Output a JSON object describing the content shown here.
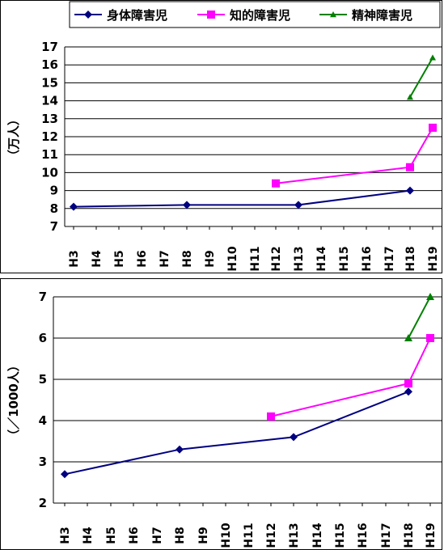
{
  "chart_data": [
    {
      "type": "line",
      "ylabel": "（万人）",
      "ylim": [
        7,
        17
      ],
      "yticks": [
        7,
        8,
        9,
        10,
        11,
        12,
        13,
        14,
        15,
        16,
        17
      ],
      "categories": [
        "H3",
        "H4",
        "H5",
        "H6",
        "H7",
        "H8",
        "H9",
        "H10",
        "H11",
        "H12",
        "H13",
        "H14",
        "H15",
        "H16",
        "H17",
        "H18",
        "H19"
      ],
      "grid": true,
      "legend": "top",
      "series": [
        {
          "name": "身体障害児",
          "color": "#000080",
          "marker": "diamond",
          "points": [
            {
              "x": "H3",
              "y": 8.1
            },
            {
              "x": "H8",
              "y": 8.2
            },
            {
              "x": "H13",
              "y": 8.2
            },
            {
              "x": "H18",
              "y": 9.0
            }
          ]
        },
        {
          "name": "知的障害児",
          "color": "#ff00ff",
          "marker": "square",
          "points": [
            {
              "x": "H12",
              "y": 9.4
            },
            {
              "x": "H18",
              "y": 10.3
            },
            {
              "x": "H19",
              "y": 12.5
            }
          ]
        },
        {
          "name": "精神障害児",
          "color": "#008000",
          "marker": "triangle",
          "points": [
            {
              "x": "H18",
              "y": 14.2
            },
            {
              "x": "H19",
              "y": 16.4
            }
          ]
        }
      ]
    },
    {
      "type": "line",
      "ylabel": "（／1000人）",
      "ylim": [
        2,
        7
      ],
      "yticks": [
        2,
        3,
        4,
        5,
        6,
        7
      ],
      "categories": [
        "H3",
        "H4",
        "H5",
        "H6",
        "H7",
        "H8",
        "H9",
        "H10",
        "H11",
        "H12",
        "H13",
        "H14",
        "H15",
        "H16",
        "H17",
        "H18",
        "H19"
      ],
      "grid": true,
      "series": [
        {
          "name": "身体障害児",
          "color": "#000080",
          "marker": "diamond",
          "points": [
            {
              "x": "H3",
              "y": 2.7
            },
            {
              "x": "H8",
              "y": 3.3
            },
            {
              "x": "H13",
              "y": 3.6
            },
            {
              "x": "H18",
              "y": 4.7
            }
          ]
        },
        {
          "name": "知的障害児",
          "color": "#ff00ff",
          "marker": "square",
          "points": [
            {
              "x": "H12",
              "y": 4.1
            },
            {
              "x": "H18",
              "y": 4.9
            },
            {
              "x": "H19",
              "y": 6.0
            }
          ]
        },
        {
          "name": "精神障害児",
          "color": "#008000",
          "marker": "triangle",
          "points": [
            {
              "x": "H18",
              "y": 6.0
            },
            {
              "x": "H19",
              "y": 7.0
            }
          ]
        }
      ]
    }
  ]
}
